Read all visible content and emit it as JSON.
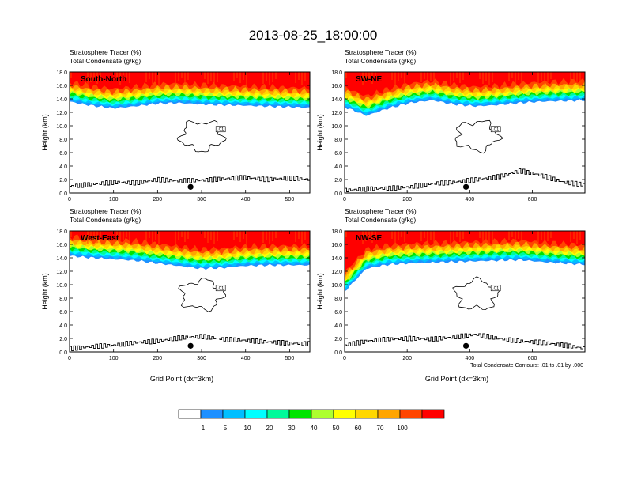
{
  "figure": {
    "title": "2013-08-25_18:00:00",
    "footnote": "Total Condensate Contours: .01 to .01 by .000"
  },
  "colorbar": {
    "labels": [
      "1",
      "5",
      "10",
      "20",
      "30",
      "40",
      "50",
      "60",
      "70",
      "100"
    ],
    "colors": [
      "#ffffff",
      "#1e90ff",
      "#00bfff",
      "#00ffff",
      "#00fa9a",
      "#00e400",
      "#adff2f",
      "#ffff00",
      "#ffd700",
      "#ffa500",
      "#ff4500",
      "#ff0000"
    ]
  },
  "chart_data": [
    {
      "type": "heatmap",
      "panel": "South-North",
      "title_lines": [
        "Stratosphere Tracer   (%)",
        "Total Condensate   (g/kg)"
      ],
      "ylabel": "Height (km)",
      "xlabel": "",
      "xlim": [
        0,
        546
      ],
      "ylim": [
        0,
        18
      ],
      "xticks": [
        0,
        100,
        200,
        300,
        400,
        500
      ],
      "yticks": [
        "0.0",
        "2.0",
        "4.0",
        "6.0",
        "8.0",
        "10.0",
        "12.0",
        "14.0",
        "16.0",
        "18.0"
      ],
      "tracer_base_km": [
        13.6,
        13.0,
        12.6,
        12.9,
        13.3,
        13.4,
        13.2,
        13.1,
        13.0,
        12.9,
        12.8,
        12.7
      ],
      "terrain_km": [
        1.0,
        1.3,
        1.6,
        1.5,
        2.0,
        1.8,
        1.9,
        2.1,
        2.3,
        2.0,
        2.2,
        2.0
      ],
      "contour_label": ".01",
      "marker_x": 275
    },
    {
      "type": "heatmap",
      "panel": "SW-NE",
      "title_lines": [
        "Stratosphere Tracer   (%)",
        "Total Condensate   (g/kg)"
      ],
      "ylabel": "Height (km)",
      "xlabel": "",
      "xlim": [
        0,
        768
      ],
      "ylim": [
        0,
        18
      ],
      "xticks": [
        0,
        200,
        400,
        600
      ],
      "yticks": [
        "0.0",
        "2.0",
        "4.0",
        "6.0",
        "8.0",
        "10.0",
        "12.0",
        "14.0",
        "16.0",
        "18.0"
      ],
      "tracer_base_km": [
        12.8,
        11.5,
        12.6,
        13.4,
        13.8,
        13.2,
        12.9,
        13.1,
        13.4,
        13.6,
        13.7,
        13.8
      ],
      "terrain_km": [
        0.4,
        0.6,
        0.7,
        0.9,
        1.4,
        1.6,
        2.0,
        2.4,
        3.3,
        2.6,
        1.6,
        1.2
      ],
      "contour_label": ".01",
      "marker_x": 388
    },
    {
      "type": "heatmap",
      "panel": "West-East",
      "title_lines": [
        "Stratosphere Tracer   (%)",
        "Total Condensate   (g/kg)"
      ],
      "ylabel": "Height (km)",
      "xlabel": "Grid Point (dx=3km)",
      "xlim": [
        0,
        546
      ],
      "ylim": [
        0,
        18
      ],
      "xticks": [
        0,
        100,
        200,
        300,
        400,
        500
      ],
      "yticks": [
        "0.0",
        "2.0",
        "4.0",
        "6.0",
        "8.0",
        "10.0",
        "12.0",
        "14.0",
        "16.0",
        "18.0"
      ],
      "tracer_base_km": [
        14.3,
        14.0,
        13.8,
        13.6,
        13.2,
        12.8,
        12.4,
        12.5,
        12.8,
        12.9,
        12.9,
        12.9
      ],
      "terrain_km": [
        0.5,
        0.8,
        1.0,
        1.4,
        1.6,
        2.1,
        2.3,
        1.9,
        1.7,
        1.5,
        1.3,
        1.2
      ],
      "contour_label": ".01",
      "marker_x": 275
    },
    {
      "type": "heatmap",
      "panel": "NW-SE",
      "title_lines": [
        "Stratosphere Tracer   (%)",
        "Total Condensate   (g/kg)"
      ],
      "ylabel": "Height (km)",
      "xlabel": "Grid Point (dx=3km)",
      "xlim": [
        0,
        768
      ],
      "ylim": [
        0,
        18
      ],
      "xticks": [
        0,
        200,
        400,
        600
      ],
      "yticks": [
        "0.0",
        "2.0",
        "4.0",
        "6.0",
        "8.0",
        "10.0",
        "12.0",
        "14.0",
        "16.0",
        "18.0"
      ],
      "tracer_base_km": [
        9.0,
        12.4,
        13.0,
        13.2,
        13.3,
        13.4,
        13.5,
        13.6,
        13.7,
        13.4,
        13.2,
        13.0
      ],
      "terrain_km": [
        1.0,
        1.6,
        1.9,
        2.0,
        1.9,
        2.2,
        2.6,
        2.0,
        1.6,
        1.4,
        1.0,
        0.5
      ],
      "contour_label": ".01",
      "marker_x": 388
    }
  ]
}
